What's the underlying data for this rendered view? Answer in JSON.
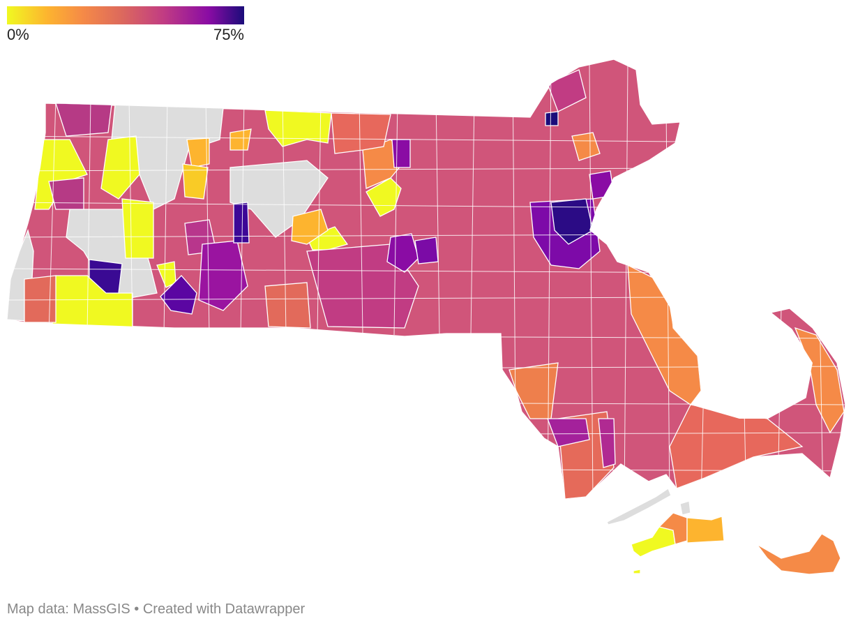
{
  "legend": {
    "min_label": "0%",
    "max_label": "75%",
    "scale": [
      "#f0f921",
      "#fdb42f",
      "#f58a47",
      "#dd6a5c",
      "#c13c83",
      "#8a0ca4",
      "#1b0c7a"
    ],
    "no_data_color": "#dddddd"
  },
  "map": {
    "state": "Massachusetts",
    "unit": "municipality",
    "notes_visible": "choropleth of municipal percentages; gray = no data"
  },
  "footer": {
    "source_text": "Map data: MassGIS • Created with Datawrapper"
  }
}
